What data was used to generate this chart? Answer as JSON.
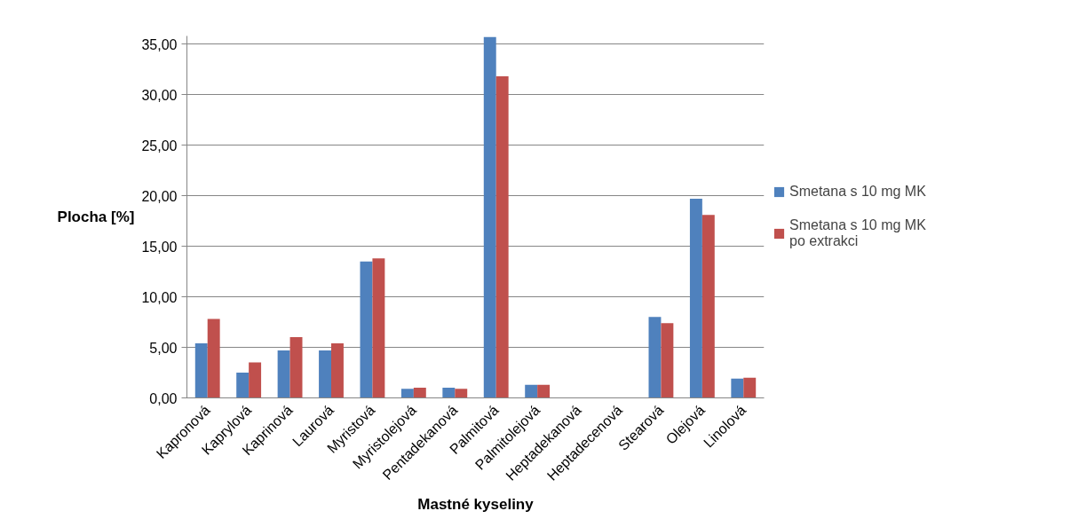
{
  "chart_data": {
    "type": "bar",
    "xlabel": "Mastné kyseliny",
    "ylabel": "Plocha [%]",
    "categories": [
      "Kapronová",
      "Kaprylová",
      "Kaprinová",
      "Laurová",
      "Myristová",
      "Myristolejová",
      "Pentadekanová",
      "Palmitová",
      "Palmitolejová",
      "Heptadekanová",
      "Heptadecenová",
      "Stearová",
      "Olejová",
      "Linolová"
    ],
    "series": [
      {
        "name": "Smetana s 10 mg MK",
        "color": "#4f81bd",
        "values": [
          5.4,
          2.5,
          4.7,
          4.7,
          13.5,
          0.9,
          1.0,
          35.7,
          1.3,
          0,
          0,
          8.0,
          19.7,
          1.9
        ]
      },
      {
        "name": "Smetana s 10 mg MK po extrakci",
        "color": "#c0504d",
        "values": [
          7.8,
          3.5,
          6.0,
          5.4,
          13.8,
          1.0,
          0.9,
          31.8,
          1.3,
          0,
          0,
          7.4,
          18.1,
          2.0
        ]
      }
    ],
    "ylim": [
      0,
      35.8
    ],
    "yticks": [
      {
        "value": 0,
        "label": "0,00"
      },
      {
        "value": 5,
        "label": "5,00"
      },
      {
        "value": 10,
        "label": "10,00"
      },
      {
        "value": 15,
        "label": "15,00"
      },
      {
        "value": 20,
        "label": "20,00"
      },
      {
        "value": 25,
        "label": "25,00"
      },
      {
        "value": 30,
        "label": "30,00"
      },
      {
        "value": 35,
        "label": "35,00"
      }
    ],
    "grid": "y",
    "legend": "right"
  }
}
